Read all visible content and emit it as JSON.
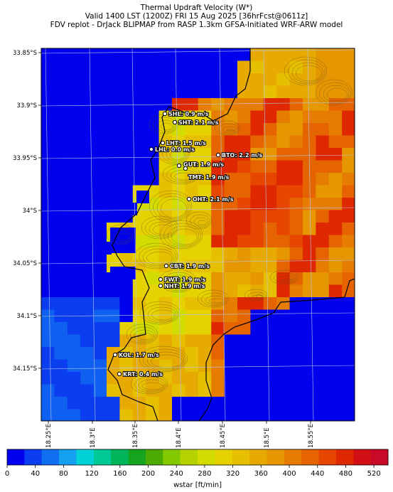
{
  "title": {
    "line1": "Thermal Updraft Velocity (W*)",
    "line2": "Valid 1400 LST (1200Z) FRI 15 Aug 2025 [36hrFcst@0611z]",
    "line3": "FDV replot - DrJack BLIPMAP from RASP 1.3km GFSA-Initiated WRF-ARW model"
  },
  "map": {
    "lat_labels": [
      "33.85°S",
      "33.9°S",
      "33.95°S",
      "34°S",
      "34.05°S",
      "34.1°S",
      "34.15°S"
    ],
    "lon_labels": [
      "18.25°E",
      "18.3°E",
      "18.35°E",
      "18.4°E",
      "18.45°E",
      "18.5°E",
      "18.55°E"
    ],
    "stations": [
      {
        "id": "SHL",
        "label": "SHL: 0.9 m/s"
      },
      {
        "id": "SHT",
        "label": "SHT: 2.1 m/s"
      },
      {
        "id": "LHT",
        "label": "LHT: 1.5 m/s"
      },
      {
        "id": "LHL",
        "label": "LHL: 0.0 m/s"
      },
      {
        "id": "BTO",
        "label": "BTO: 2.2 m/s"
      },
      {
        "id": "GUT",
        "label": "GUT: 1.9 m/s"
      },
      {
        "id": "TMT",
        "label": "TMT: 1.9 m/s"
      },
      {
        "id": "OHT",
        "label": "OHT: 2.1 m/s"
      },
      {
        "id": "CBT",
        "label": "CBT: 1.9 m/s"
      },
      {
        "id": "FWT",
        "label": "FWT: 1.9 m/s"
      },
      {
        "id": "NHT",
        "label": "NHT: 1.9 m/s"
      },
      {
        "id": "KOL",
        "label": "KOL: 1.7 m/s"
      },
      {
        "id": "KRT",
        "label": "KRT: 0.4 m/s"
      }
    ]
  },
  "colorbar": {
    "title": "wstar [ft/min]",
    "ticks": [
      "0",
      "40",
      "80",
      "120",
      "160",
      "200",
      "240",
      "280",
      "320",
      "360",
      "400",
      "440",
      "480",
      "520"
    ],
    "colors": [
      "#0000ee",
      "#0a3ef0",
      "#0f6ff0",
      "#14a0ee",
      "#00d2d8",
      "#00c896",
      "#00b45a",
      "#14a41e",
      "#4caa00",
      "#84c800",
      "#b4d200",
      "#d2dc00",
      "#e6d200",
      "#e6c000",
      "#e6aa00",
      "#e69600",
      "#e67d00",
      "#e66400",
      "#e64600",
      "#e02800",
      "#d20f14",
      "#c80a28"
    ]
  }
}
